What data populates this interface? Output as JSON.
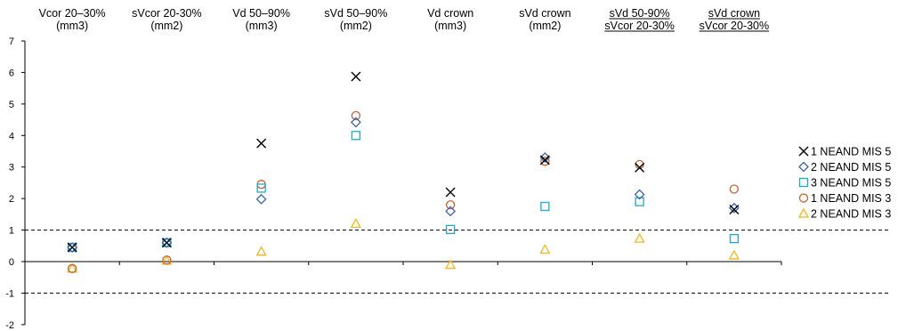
{
  "chart_data": {
    "type": "scatter",
    "categories": [
      {
        "line1": "Vcor 20–30%",
        "line2": "(mm3)",
        "underlined": false
      },
      {
        "line1": "sVcor 20-30%",
        "line2": "(mm2)",
        "underlined": false
      },
      {
        "line1": "Vd 50–90%",
        "line2": "(mm3)",
        "underlined": false
      },
      {
        "line1": "sVd 50–90%",
        "line2": "(mm2)",
        "underlined": false
      },
      {
        "line1": "Vd crown",
        "line2": "(mm3)",
        "underlined": false
      },
      {
        "line1": "sVd crown",
        "line2": "(mm2)",
        "underlined": false
      },
      {
        "line1": "sVd 50-90%",
        "line2": "sVcor 20-30%",
        "underlined": true
      },
      {
        "line1": "sVd crown",
        "line2": "sVcor 20-30%",
        "underlined": true
      }
    ],
    "ylim": [
      -2,
      7
    ],
    "yticks": [
      "-2",
      "-1",
      "0",
      "1",
      "2",
      "3",
      "4",
      "5",
      "6",
      "7"
    ],
    "reference_lines": [
      1,
      -1
    ],
    "legend_position": "right",
    "series": [
      {
        "name": "1 NEAND MIS 5",
        "marker": "x",
        "color": "#000000",
        "values": [
          0.45,
          0.6,
          3.75,
          5.87,
          2.2,
          3.22,
          2.98,
          1.65
        ]
      },
      {
        "name": "2 NEAND MIS 5",
        "marker": "diamond",
        "color": "#3a62ad",
        "values": [
          0.45,
          0.6,
          1.98,
          4.42,
          1.6,
          3.3,
          2.13,
          1.7
        ]
      },
      {
        "name": "3 NEAND MIS 5",
        "marker": "square",
        "color": "#21a8c8",
        "values": [
          0.45,
          0.6,
          2.33,
          4.0,
          1.02,
          1.75,
          1.9,
          0.73
        ]
      },
      {
        "name": "1 NEAND MIS 3",
        "marker": "circle",
        "color": "#c5622a",
        "values": [
          -0.22,
          0.05,
          2.45,
          4.63,
          1.8,
          3.18,
          3.08,
          2.3
        ]
      },
      {
        "name": "2 NEAND MIS 3",
        "marker": "triangle",
        "color": "#f2b51d",
        "values": [
          -0.22,
          0.03,
          0.32,
          1.2,
          -0.1,
          0.38,
          0.73,
          0.2
        ]
      }
    ]
  }
}
